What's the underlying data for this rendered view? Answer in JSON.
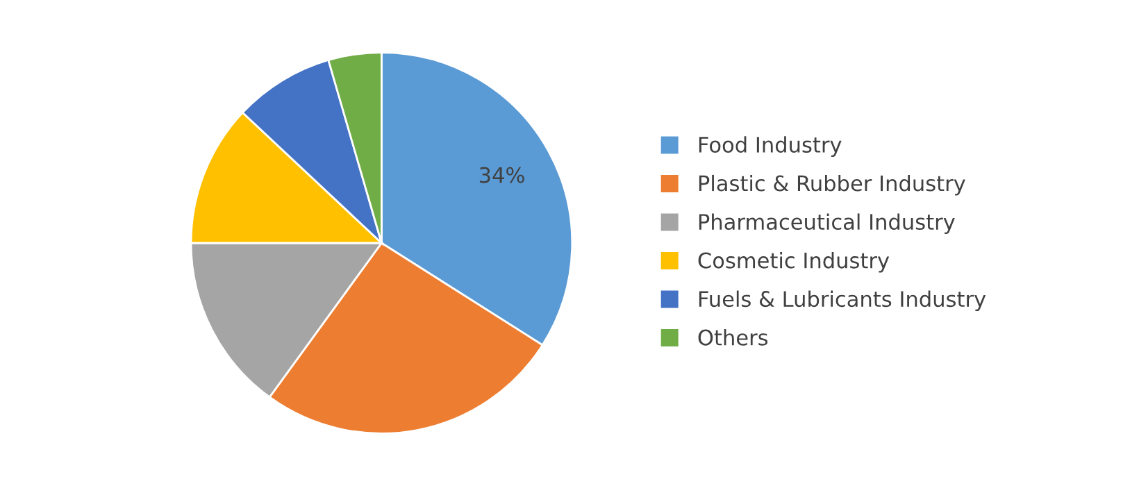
{
  "chart_data": {
    "type": "pie",
    "categories": [
      "Food Industry",
      "Plastic & Rubber Industry",
      "Pharmaceutical Industry",
      "Cosmetic Industry",
      "Fuels & Lubricants Industry",
      "Others"
    ],
    "values": [
      34,
      26,
      15,
      12,
      8.5,
      4.5
    ],
    "colors": [
      "#5b9bd5",
      "#ed7d31",
      "#a5a5a5",
      "#ffc000",
      "#4472c4",
      "#70ad47"
    ],
    "value_labels": [
      "34%",
      null,
      null,
      null,
      null,
      null
    ],
    "legend": "right"
  }
}
